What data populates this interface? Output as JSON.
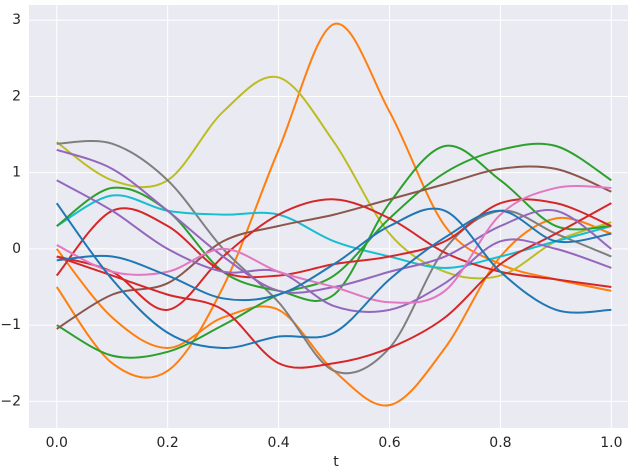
{
  "chart_data": {
    "type": "line",
    "xlabel": "t",
    "x": [
      0,
      0.1,
      0.2,
      0.3,
      0.4,
      0.5,
      0.6,
      0.7,
      0.8,
      0.9,
      1.0
    ],
    "xlim": [
      -0.05,
      1.03
    ],
    "ylim": [
      -2.35,
      3.2
    ],
    "xticks": [
      {
        "value": 0,
        "label": "0.0"
      },
      {
        "value": 0.2,
        "label": "0.2"
      },
      {
        "value": 0.4,
        "label": "0.4"
      },
      {
        "value": 0.6,
        "label": "0.6"
      },
      {
        "value": 0.8,
        "label": "0.8"
      },
      {
        "value": 1.0,
        "label": "1.0"
      }
    ],
    "yticks": [
      {
        "value": -2,
        "label": "−2"
      },
      {
        "value": -1,
        "label": "−1"
      },
      0,
      1,
      2,
      3
    ],
    "grid": true,
    "series": [
      {
        "color": "#ff7f0e",
        "values": [
          -0.5,
          -1.5,
          -1.6,
          -0.5,
          1.3,
          2.95,
          1.8,
          0.3,
          -0.2,
          -0.4,
          -0.55
        ]
      },
      {
        "color": "#ff7f0e",
        "values": [
          0.0,
          -0.9,
          -1.3,
          -0.9,
          -0.8,
          -1.6,
          -2.05,
          -1.3,
          -0.1,
          0.4,
          0.2
        ]
      },
      {
        "color": "#bcbd22",
        "values": [
          1.4,
          0.9,
          0.9,
          1.8,
          2.25,
          1.4,
          0.2,
          -0.3,
          -0.35,
          0.1,
          0.35
        ]
      },
      {
        "color": "#7f7f7f",
        "values": [
          1.38,
          1.38,
          0.9,
          0.0,
          -0.7,
          -1.6,
          -1.3,
          0.0,
          0.5,
          0.2,
          -0.1
        ]
      },
      {
        "color": "#17becf",
        "values": [
          0.3,
          0.7,
          0.5,
          0.45,
          0.45,
          0.1,
          -0.1,
          -0.25,
          -0.1,
          0.1,
          0.3
        ]
      },
      {
        "color": "#2ca02c",
        "values": [
          0.3,
          0.8,
          0.5,
          -0.3,
          -0.55,
          -0.6,
          0.6,
          1.35,
          0.9,
          0.3,
          0.3
        ]
      },
      {
        "color": "#2ca02c",
        "values": [
          -1.0,
          -1.4,
          -1.35,
          -1.0,
          -0.6,
          -0.35,
          0.4,
          1.0,
          1.3,
          1.35,
          0.9
        ]
      },
      {
        "color": "#8c564b",
        "values": [
          -1.05,
          -0.6,
          -0.45,
          0.1,
          0.3,
          0.45,
          0.65,
          0.85,
          1.05,
          1.05,
          0.75
        ]
      },
      {
        "color": "#d62728",
        "values": [
          -0.35,
          0.5,
          0.3,
          -0.3,
          -0.35,
          -0.2,
          -0.1,
          0.1,
          0.6,
          0.6,
          0.3
        ]
      },
      {
        "color": "#d62728",
        "values": [
          -0.1,
          -0.3,
          -0.8,
          -0.1,
          0.45,
          0.65,
          0.4,
          -0.05,
          -0.3,
          -0.4,
          -0.5
        ]
      },
      {
        "color": "#d62728",
        "values": [
          -0.1,
          -0.35,
          -0.6,
          -0.8,
          -1.5,
          -1.5,
          -1.3,
          -0.9,
          -0.2,
          0.2,
          0.6
        ]
      },
      {
        "color": "#9467bd",
        "values": [
          1.3,
          1.05,
          0.5,
          -0.1,
          -0.55,
          -0.5,
          -0.3,
          -0.1,
          0.3,
          0.5,
          0.0
        ]
      },
      {
        "color": "#9467bd",
        "values": [
          0.9,
          0.5,
          0.0,
          -0.3,
          -0.3,
          -0.75,
          -0.8,
          -0.45,
          0.1,
          0.0,
          -0.25
        ]
      },
      {
        "color": "#e377c2",
        "values": [
          0.05,
          -0.3,
          -0.3,
          0.0,
          -0.3,
          -0.5,
          -0.7,
          -0.55,
          0.45,
          0.8,
          0.8
        ]
      },
      {
        "color": "#1f77b4",
        "values": [
          0.6,
          -0.4,
          -1.1,
          -1.3,
          -1.15,
          -1.1,
          -0.4,
          0.15,
          0.5,
          0.1,
          0.2
        ]
      },
      {
        "color": "#1f77b4",
        "values": [
          -0.15,
          -0.1,
          -0.35,
          -0.65,
          -0.6,
          -0.2,
          0.3,
          0.5,
          -0.3,
          -0.8,
          -0.8
        ]
      }
    ]
  }
}
